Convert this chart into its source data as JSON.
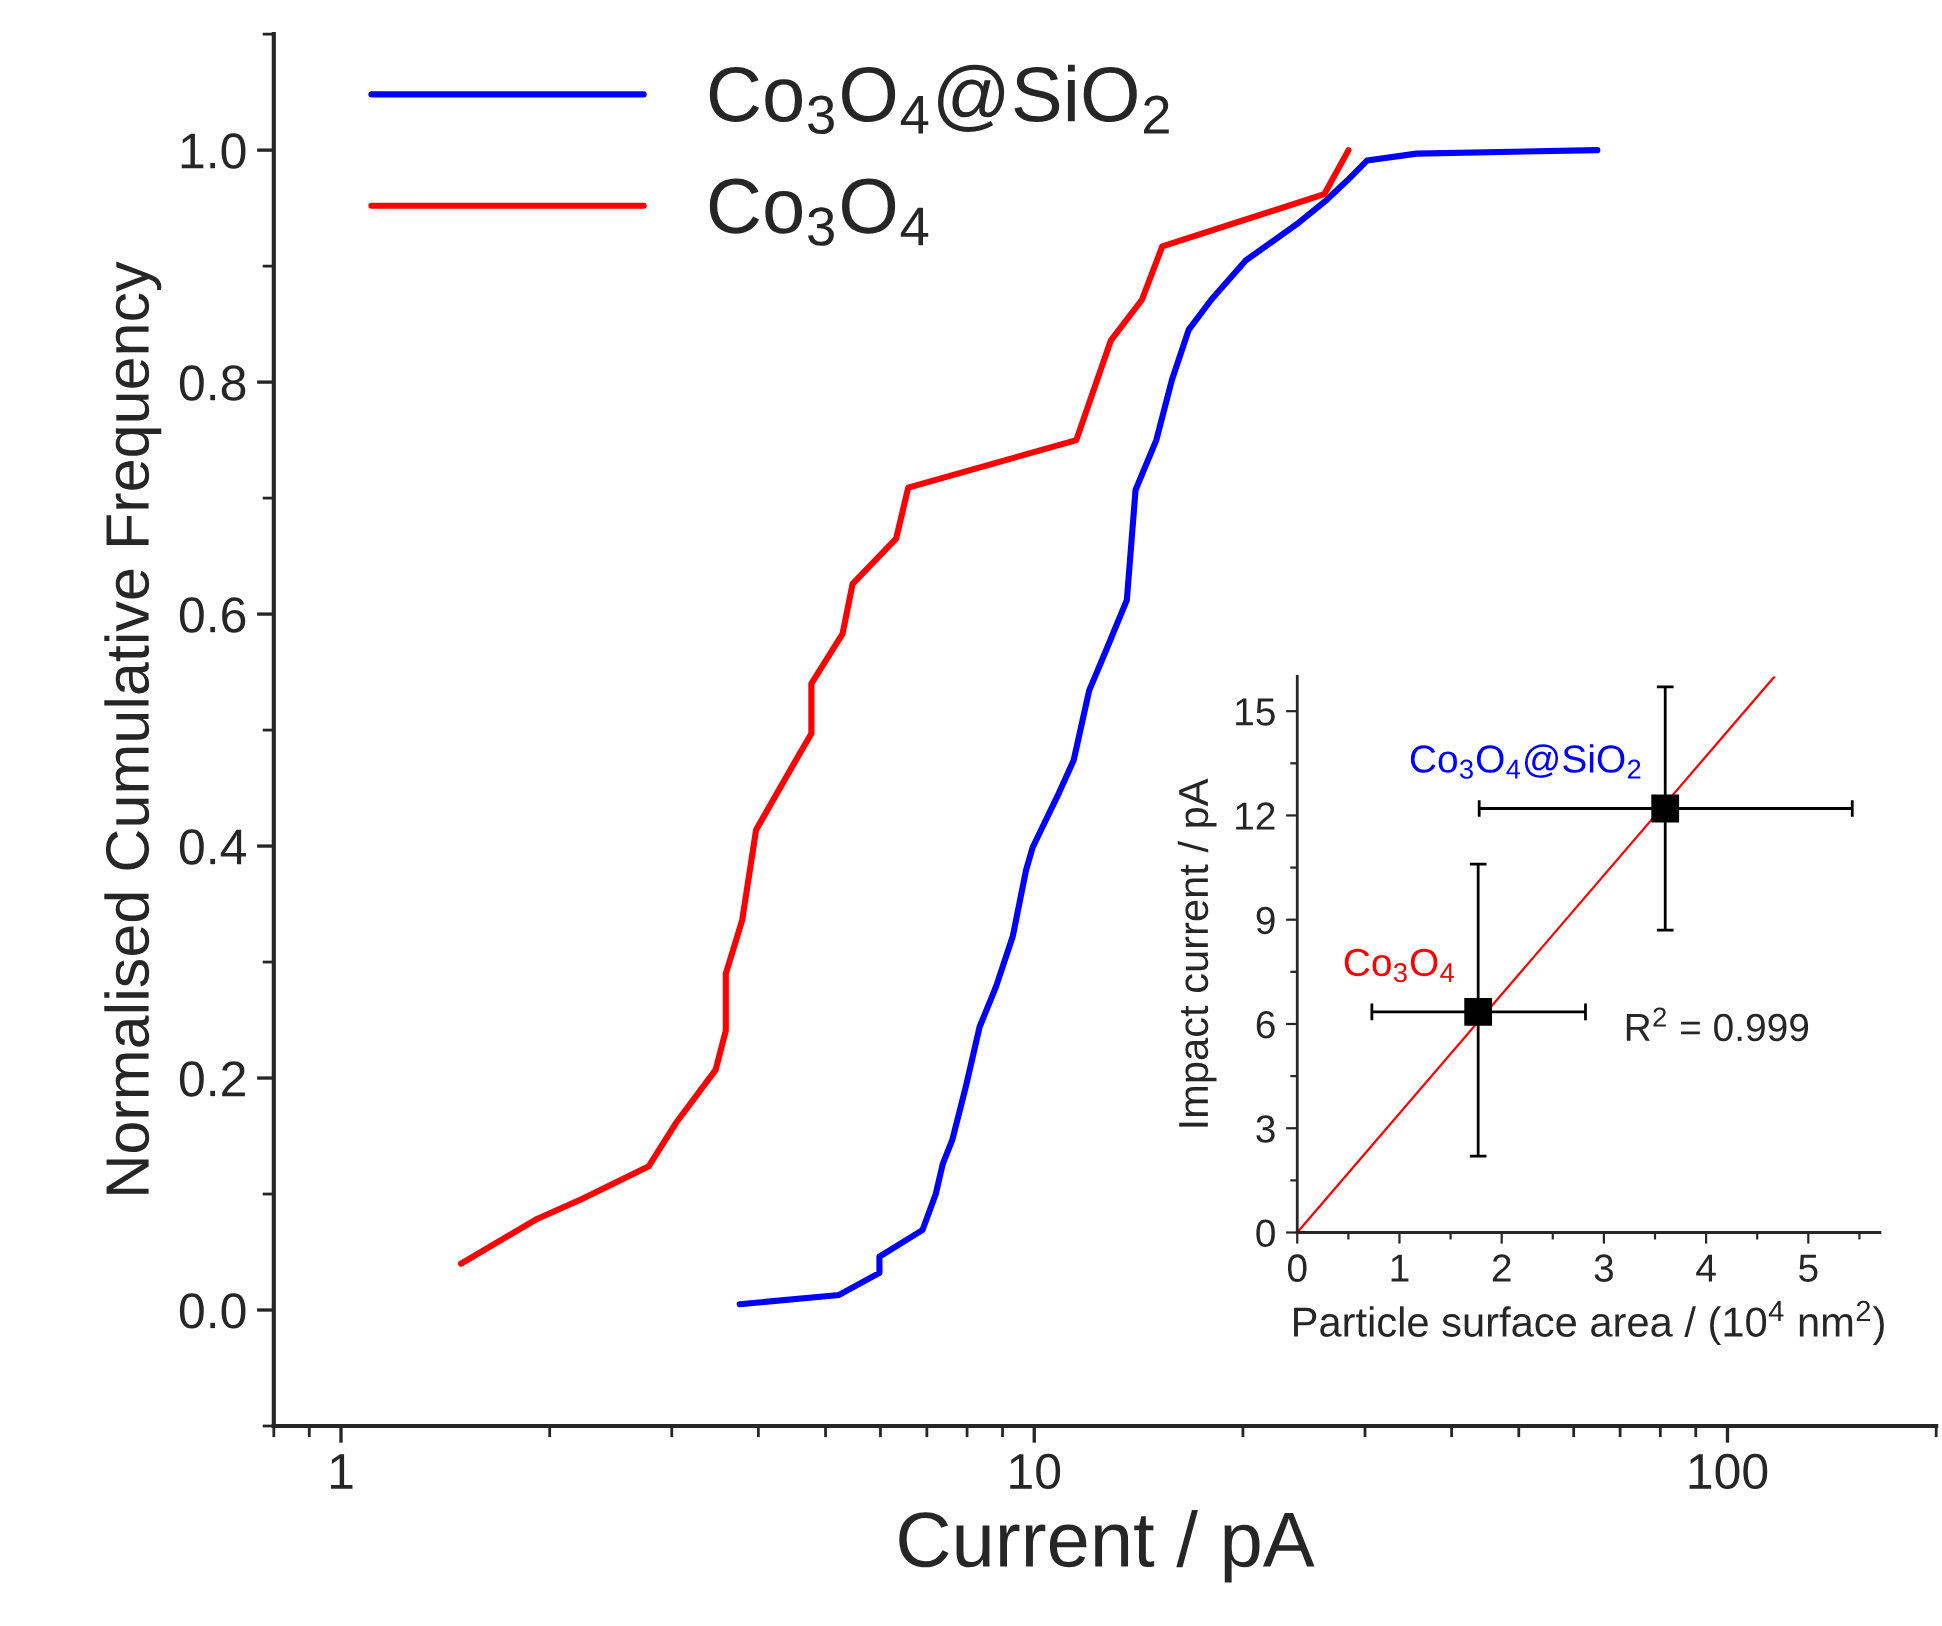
{
  "chart_data": [
    {
      "type": "line",
      "xlabel": "Current / pA",
      "ylabel": "Normalised Cumulative Frequency",
      "log": "x",
      "xlim": [
        0.8,
        200
      ],
      "xticks": [
        1,
        10,
        100
      ],
      "ylim": [
        -0.1,
        1.1
      ],
      "yticks": [
        {
          "value": 0,
          "label": "0.0"
        },
        0.2,
        0.4,
        0.6,
        0.8,
        {
          "value": 1,
          "label": "1.0"
        }
      ],
      "legend": "top left",
      "grid": false,
      "series": [
        {
          "name": "Co$_{3}$O$_{4}$@SiO$_{2}$",
          "color": "#0000ff",
          "x": [
            3.76,
            5.23,
            5.98,
            5.98,
            6.9,
            7.21,
            7.38,
            7.62,
            7.97,
            8.34,
            8.81,
            9.31,
            9.73,
            9.95,
            10.8,
            11.4,
            12.0,
            12.7,
            13.6,
            14.0,
            15.0,
            15.8,
            16.7,
            18.0,
            20.2,
            23.9,
            26.4,
            28.3,
            30.2,
            35.6,
            64.9
          ],
          "values": [
            0.005,
            0.013,
            0.032,
            0.046,
            0.069,
            0.1,
            0.126,
            0.147,
            0.193,
            0.244,
            0.279,
            0.322,
            0.379,
            0.399,
            0.443,
            0.474,
            0.534,
            0.569,
            0.612,
            0.707,
            0.75,
            0.802,
            0.845,
            0.871,
            0.905,
            0.936,
            0.957,
            0.974,
            0.991,
            0.997,
            1.0
          ]
        },
        {
          "name": "Co$_{3}$O$_{4}$",
          "color": "#ff0000",
          "x": [
            1.49,
            1.91,
            2.23,
            2.78,
            3.04,
            3.47,
            3.59,
            3.59,
            3.79,
            3.97,
            4.53,
            4.77,
            4.77,
            5.29,
            5.47,
            6.32,
            6.58,
            11.5,
            12.9,
            14.3,
            15.3,
            26.2,
            28.4
          ],
          "values": [
            0.04,
            0.078,
            0.096,
            0.124,
            0.161,
            0.207,
            0.241,
            0.29,
            0.336,
            0.414,
            0.474,
            0.497,
            0.54,
            0.583,
            0.626,
            0.665,
            0.709,
            0.75,
            0.836,
            0.871,
            0.917,
            0.962,
            1.0
          ]
        }
      ]
    },
    {
      "type": "scatter",
      "xlabel": "Particle surface area / (10$^{4}$ nm$^{2}$)",
      "ylabel": "Impact current / pA",
      "xlim": [
        0,
        5.7
      ],
      "xticks": [
        0,
        1,
        2,
        3,
        4,
        5
      ],
      "ylim": [
        0,
        16
      ],
      "yticks": [
        0,
        3,
        6,
        9,
        12,
        15
      ],
      "marker": "square",
      "grid": false,
      "legend": false,
      "annotations": [
        "R$^{2}$ = 0.999"
      ],
      "series": [
        {
          "name": "Co$_{3}$O$_{4}$@SiO$_{2}$",
          "color": "#000000",
          "x": [
            3.6
          ],
          "values": [
            12.2
          ],
          "errors": [
            [
              8.7,
              15.7
            ]
          ],
          "xerrors": [
            [
              1.78,
              5.43
            ]
          ]
        },
        {
          "name": "Co$_{3}$O$_{4}$",
          "color": "#000000",
          "x": [
            1.77
          ],
          "values": [
            6.35
          ],
          "errors": [
            [
              2.2,
              10.6
            ]
          ],
          "xerrors": [
            [
              0.73,
              2.82
            ]
          ]
        },
        {
          "type": "line",
          "marker": "none",
          "color": "#ff0000",
          "x": [
            0,
            4.67
          ],
          "values": [
            0,
            16
          ]
        }
      ]
    }
  ]
}
